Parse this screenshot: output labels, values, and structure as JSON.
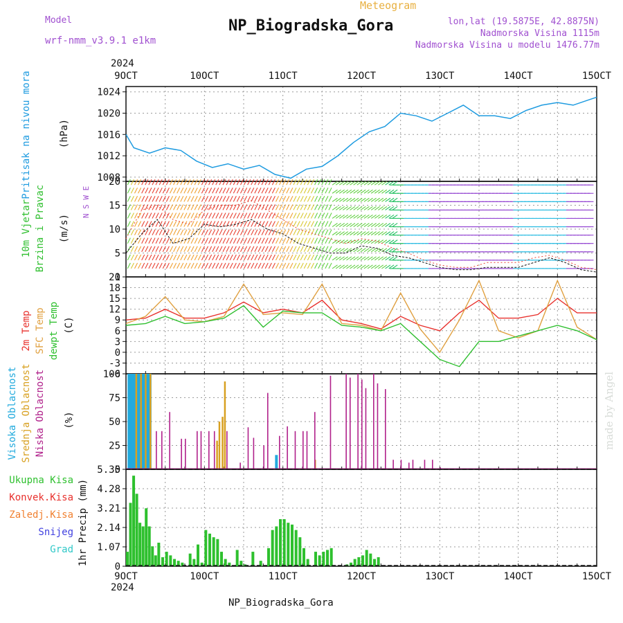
{
  "header": {
    "model_label": "Model",
    "model_name": "wrf-nmm_v3.9.1 e1km",
    "title": "NP_Biogradska_Gora",
    "meteogram_label": "Meteogram",
    "lonlat": "lon,lat (19.5875E, 42.8875N)",
    "altitude": "Nadmorska Visina 1115m",
    "model_altitude": "Nadmorska Visina u modelu 1476.77m",
    "year_top": "2024",
    "year_bottom": "2024",
    "footer_title": "NP_Biogradska_Gora",
    "watermark": "made by Angel"
  },
  "colors": {
    "pressure": "#1e9be0",
    "temp2m": "#e8302c",
    "sfc": "#e0a040",
    "dewpt": "#2fbf2f",
    "high": "#22aadd",
    "mid": "#d8a020",
    "low": "#b0208a",
    "precip": "#2ec02e",
    "purple": "#a050d0"
  },
  "panel_labels": {
    "pressure": {
      "name": "Pritisak na nivou mora",
      "unit": "(hPa)"
    },
    "wind": {
      "line1": "10m Vjetar",
      "line2": "Brzina i Pravac",
      "unit": "(m/s)",
      "compass": "N S W E"
    },
    "temp": {
      "line1": "2m Temp",
      "line2": "SFC Temp",
      "line3": "dewpt Temp",
      "unit": "(C)"
    },
    "cloud": {
      "line1": "Visoka Oblacnost",
      "line2": "Srednja Oblacnost",
      "line3": "Niska Oblacnost",
      "unit": "(%)"
    },
    "precip": {
      "items": [
        "Ukupna Kisa",
        "Konvek.Kisa",
        "Zaledj.Kisa",
        "Snijeg",
        "Grad"
      ],
      "unit": "1hr Precip (mm)"
    }
  },
  "chart_data": [
    {
      "type": "line",
      "title": "Pritisak na nivou mora",
      "ylabel": "(hPa)",
      "x_ticks": [
        "9OCT",
        "10OCT",
        "11OCT",
        "12OCT",
        "13OCT",
        "14OCT",
        "15OCT"
      ],
      "x": [
        9.0,
        9.1,
        9.3,
        9.5,
        9.7,
        9.9,
        10.1,
        10.3,
        10.5,
        10.7,
        10.9,
        11.1,
        11.3,
        11.5,
        11.7,
        11.9,
        12.1,
        12.3,
        12.5,
        12.7,
        12.9,
        13.1,
        13.3,
        13.5,
        13.7,
        13.9,
        14.1,
        14.3,
        14.5,
        14.7,
        14.9,
        15.0
      ],
      "series": [
        {
          "name": "Pritisak",
          "values": [
            1016,
            1013.5,
            1012.5,
            1013.5,
            1013,
            1011,
            1009.8,
            1010.5,
            1009.5,
            1010.2,
            1008.5,
            1007.8,
            1009.5,
            1010,
            1012,
            1014.5,
            1016.5,
            1017.5,
            1020,
            1019.5,
            1018.5,
            1020,
            1021.5,
            1019.5,
            1019.5,
            1019,
            1020.5,
            1021.5,
            1022,
            1021.5,
            1022.5,
            1023
          ]
        }
      ],
      "y_ticks": [
        1008,
        1012,
        1016,
        1020,
        1024
      ],
      "ylim": [
        1007.2,
        1025
      ]
    },
    {
      "type": "line",
      "title": "10m Vjetar Brzina i Pravac",
      "ylabel": "(m/s)",
      "x": [
        9.0,
        9.2,
        9.4,
        9.6,
        9.8,
        10.0,
        10.2,
        10.4,
        10.6,
        10.8,
        11.0,
        11.2,
        11.4,
        11.6,
        11.8,
        12.0,
        12.2,
        12.4,
        12.6,
        12.8,
        13.0,
        13.2,
        13.4,
        13.6,
        13.8,
        14.0,
        14.2,
        14.4,
        14.6,
        14.8,
        15.0
      ],
      "series": [
        {
          "name": "speed",
          "values": [
            5,
            9,
            12,
            7,
            8,
            11,
            10.5,
            11,
            12,
            10,
            9,
            7,
            6,
            5,
            5,
            6.5,
            6,
            4.5,
            4,
            3,
            2,
            1.5,
            1.5,
            2,
            2,
            2,
            3,
            4,
            3,
            1.5,
            1
          ]
        },
        {
          "name": "gust",
          "values": [
            8,
            14,
            15,
            12,
            11,
            14,
            15,
            15,
            16,
            14,
            12,
            10,
            9,
            8,
            7,
            8,
            7.5,
            6,
            5,
            3.5,
            2.5,
            2,
            2,
            3,
            3,
            3,
            4,
            4.5,
            3.5,
            2,
            1.5
          ]
        }
      ],
      "y_ticks": [
        0,
        5,
        10,
        15,
        20
      ],
      "ylim": [
        0,
        20
      ]
    },
    {
      "type": "line",
      "title": "Temperature",
      "ylabel": "(C)",
      "x": [
        9.0,
        9.25,
        9.5,
        9.75,
        10.0,
        10.25,
        10.5,
        10.75,
        11.0,
        11.25,
        11.5,
        11.75,
        12.0,
        12.25,
        12.5,
        12.75,
        13.0,
        13.25,
        13.5,
        13.75,
        14.0,
        14.25,
        14.5,
        14.75,
        15.0
      ],
      "series": [
        {
          "name": "2m Temp",
          "values": [
            9,
            9.5,
            12,
            9.5,
            9.5,
            11,
            14,
            11,
            12,
            11,
            14.5,
            9,
            8,
            6.5,
            10,
            7.5,
            6,
            11,
            14.5,
            9.5,
            9.5,
            10.5,
            15,
            11,
            11
          ]
        },
        {
          "name": "SFC Temp",
          "values": [
            8,
            10,
            15.5,
            9,
            8.5,
            10,
            19,
            10.5,
            11,
            10.5,
            19,
            8,
            7.5,
            6,
            16.5,
            6.5,
            0,
            9,
            20,
            6,
            4,
            6,
            20,
            7,
            3.5
          ]
        },
        {
          "name": "dewpt Temp",
          "values": [
            7.5,
            8,
            10,
            8,
            8.5,
            9.5,
            13,
            7,
            11.5,
            11,
            11,
            7.5,
            7,
            6,
            8,
            3,
            -2,
            -4,
            3,
            3,
            4.5,
            6,
            7.5,
            6,
            3.5
          ]
        }
      ],
      "y_ticks": [
        -6,
        -3,
        0,
        3,
        6,
        9,
        12,
        15,
        18,
        21
      ],
      "ylim": [
        -6,
        21
      ]
    },
    {
      "type": "bar",
      "title": "Oblacnost",
      "ylabel": "(%)",
      "series": [
        {
          "name": "Visoka Oblacnost",
          "x": [
            9.02,
            9.05,
            9.08,
            9.11,
            9.14,
            9.17,
            9.2,
            9.23,
            9.26,
            9.29,
            10.9
          ],
          "values": [
            100,
            100,
            100,
            100,
            100,
            100,
            100,
            100,
            100,
            100,
            15
          ]
        },
        {
          "name": "Srednja Oblacnost",
          "x": [
            9.12,
            9.18,
            9.24,
            9.3,
            10.15,
            10.18,
            10.22,
            10.25,
            11.4
          ],
          "values": [
            100,
            100,
            100,
            100,
            30,
            50,
            55,
            92,
            10
          ]
        },
        {
          "name": "Niska Oblacnost",
          "x": [
            9.38,
            9.45,
            9.55,
            9.7,
            9.75,
            9.9,
            9.95,
            10.05,
            10.12,
            10.28,
            10.45,
            10.55,
            10.62,
            10.75,
            10.8,
            10.95,
            11.05,
            11.15,
            11.25,
            11.3,
            11.4,
            11.6,
            11.8,
            11.85,
            11.95,
            12.0,
            12.05,
            12.15,
            12.2,
            12.3,
            12.4,
            12.5,
            12.6,
            12.65,
            12.8,
            12.9,
            13.0
          ],
          "values": [
            40,
            40,
            60,
            32,
            32,
            40,
            40,
            40,
            40,
            40,
            7,
            44,
            33,
            25,
            80,
            35,
            45,
            40,
            40,
            40,
            60,
            98,
            100,
            96,
            100,
            94,
            85,
            100,
            90,
            84,
            10,
            10,
            7,
            10,
            10,
            10,
            2
          ]
        }
      ],
      "y_ticks": [
        0,
        25,
        50,
        75,
        100
      ],
      "ylim": [
        0,
        100
      ]
    },
    {
      "type": "bar",
      "title": "1hr Precip",
      "ylabel": "1hr Precip (mm)",
      "series": [
        {
          "name": "Ukupna Kisa",
          "x": [
            9.0,
            9.04,
            9.08,
            9.12,
            9.16,
            9.2,
            9.24,
            9.28,
            9.32,
            9.36,
            9.4,
            9.45,
            9.5,
            9.55,
            9.6,
            9.65,
            9.7,
            9.8,
            9.85,
            9.9,
            9.95,
            10.0,
            10.05,
            10.1,
            10.15,
            10.2,
            10.25,
            10.3,
            10.4,
            10.45,
            10.5,
            10.6,
            10.7,
            10.8,
            10.85,
            10.9,
            10.95,
            11.0,
            11.05,
            11.1,
            11.15,
            11.2,
            11.25,
            11.3,
            11.4,
            11.45,
            11.5,
            11.55,
            11.6,
            11.8,
            11.85,
            11.9,
            11.95,
            12.0,
            12.05,
            12.1,
            12.15,
            12.2
          ],
          "values": [
            0.8,
            3.5,
            5.0,
            4.0,
            2.4,
            2.2,
            3.2,
            2.2,
            1.1,
            0.6,
            1.3,
            0.5,
            0.8,
            0.6,
            0.4,
            0.3,
            0.2,
            0.7,
            0.4,
            1.2,
            0.2,
            2.0,
            1.8,
            1.6,
            1.5,
            0.8,
            0.4,
            0.2,
            0.9,
            0.3,
            0.1,
            0.8,
            0.3,
            1.0,
            2.0,
            2.2,
            2.6,
            2.6,
            2.4,
            2.3,
            2.0,
            1.6,
            1.0,
            0.4,
            0.8,
            0.6,
            0.8,
            0.9,
            1.0,
            0.1,
            0.2,
            0.4,
            0.5,
            0.6,
            0.9,
            0.7,
            0.4,
            0.5
          ]
        }
      ],
      "y_ticks": [
        0,
        1.07,
        2.14,
        3.21,
        4.28,
        5.35
      ],
      "ylim": [
        0,
        5.35
      ]
    }
  ]
}
